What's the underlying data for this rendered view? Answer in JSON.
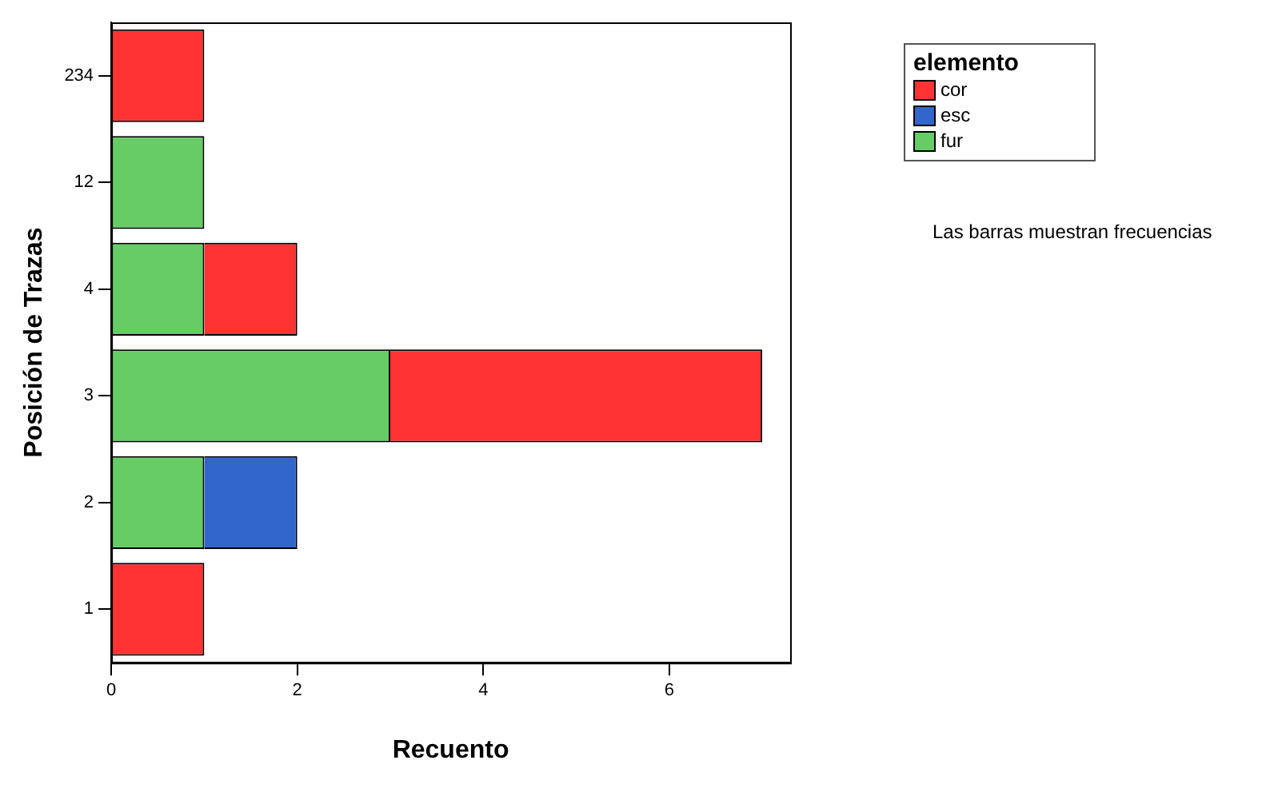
{
  "chart_data": {
    "type": "bar",
    "orientation": "horizontal",
    "stacked": true,
    "xlabel": "Recuento",
    "ylabel": "Posición de Trazas",
    "legend_title": "elemento",
    "legend": "top right",
    "grid": false,
    "categories": [
      "234",
      "12",
      "4",
      "3",
      "2",
      "1"
    ],
    "series": [
      {
        "name": "fur",
        "color": "#66cc66",
        "values": [
          null,
          1,
          1,
          3,
          1,
          null
        ]
      },
      {
        "name": "cor",
        "color": "#ff3333",
        "values": [
          1,
          null,
          1,
          4,
          null,
          1
        ]
      },
      {
        "name": "esc",
        "color": "#3366cc",
        "values": [
          null,
          null,
          null,
          null,
          1,
          null
        ]
      }
    ],
    "xlim": [
      0,
      7.3
    ],
    "xticks": [
      0,
      2,
      4,
      6
    ],
    "annotations": [
      "Las barras muestran frecuencias"
    ]
  }
}
